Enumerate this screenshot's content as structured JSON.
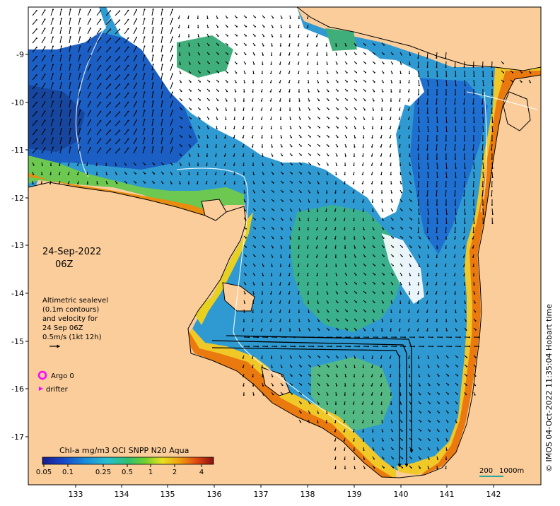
{
  "map": {
    "date_line": "24-Sep-2022",
    "time_line": "06Z",
    "legend": {
      "line1": "Altimetric sealevel",
      "line2": "(0.1m contours)",
      "line3": "and velocity for",
      "line4": "24 Sep 06Z",
      "line5": "0.5m/s (1kt 12h)"
    },
    "argo_label": "Argo 0",
    "drifter_label": "drifter",
    "colorbar": {
      "title": "Chl-a mg/m3 OCI SNPP N20 Aqua",
      "ticks": [
        "0.05",
        "0.1",
        "0.25",
        "0.5",
        "1",
        "2",
        "4"
      ]
    },
    "scale_bar": {
      "label_a": "200",
      "label_b": "1000m"
    },
    "credit": "© IMOS 04-Oct-2022 11:35:04 Hobart time",
    "axes": {
      "x_ticks": [
        "133",
        "134",
        "135",
        "136",
        "137",
        "138",
        "139",
        "140",
        "141",
        "142"
      ],
      "y_ticks": [
        "-9",
        "-10",
        "-11",
        "-12",
        "-13",
        "-14",
        "-15",
        "-16",
        "-17"
      ]
    },
    "colors": {
      "land": "#fbcd9b",
      "ocean_deep": "#1a63c7",
      "ocean_mid": "#3aa6d6",
      "ocean_green": "#5ec06a",
      "coastal_yellow": "#f0d020",
      "coastal_orange": "#ef8a12",
      "cloud": "#ffffff",
      "argo": "#ff00ff",
      "drifter": "#ff00ff"
    }
  }
}
